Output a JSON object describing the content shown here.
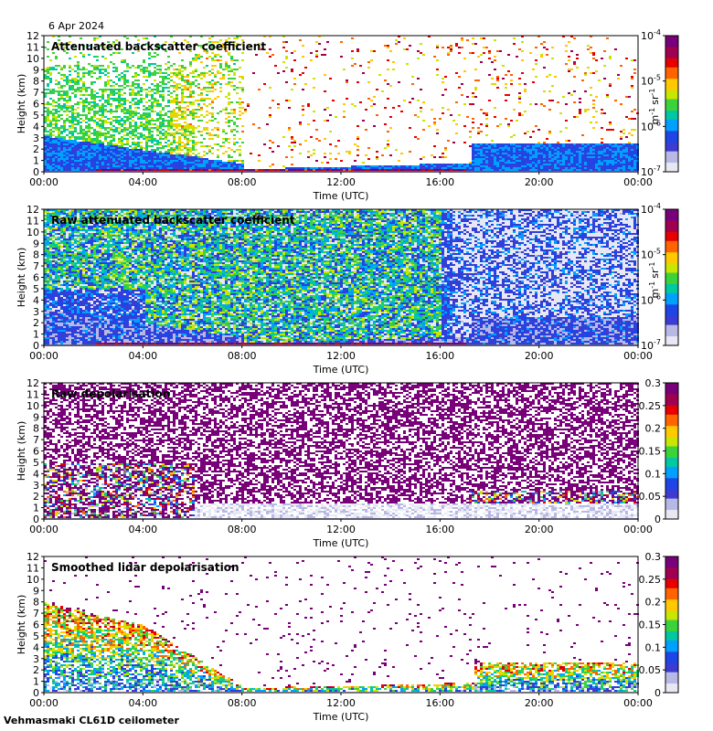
{
  "date": "6 Apr 2024",
  "footer": "Vehmasmaki CL61D ceilometer",
  "time_ticks": [
    "00:00",
    "04:00",
    "08:00",
    "12:00",
    "16:00",
    "20:00",
    "00:00"
  ],
  "xlabel": "Time (UTC)",
  "ylabel": "Height (km)",
  "chart_data": [
    {
      "type": "heatmap",
      "title": "Attenuated backscatter coefficient",
      "xlabel": "Time (UTC)",
      "ylabel": "Height (km)",
      "x_range_hours": [
        0,
        24
      ],
      "ylim": [
        0,
        12
      ],
      "y_ticks": [
        0,
        1,
        2,
        3,
        4,
        5,
        6,
        7,
        8,
        9,
        10,
        11,
        12
      ],
      "colorbar": {
        "scale": "log",
        "range": [
          1e-07,
          0.0001
        ],
        "tick_labels": [
          {
            "base": "10",
            "exp": "-4"
          },
          {
            "base": "10",
            "exp": "-5"
          },
          {
            "base": "10",
            "exp": "-6"
          },
          {
            "base": "10",
            "exp": "-7"
          }
        ],
        "unit": {
          "a": "m",
          "ae": "-1",
          "b": "sr",
          "be": "-1"
        }
      },
      "colormap": [
        "#e8e8f4",
        "#b8b8e6",
        "#3c3cd2",
        "#1e46e6",
        "#00a0ff",
        "#00c8a0",
        "#3cd23c",
        "#c8e600",
        "#ffc800",
        "#ff6400",
        "#e60000",
        "#a00050",
        "#780078"
      ],
      "profile": "attenuated"
    },
    {
      "type": "heatmap",
      "title": "Raw attenuated backscatter coefficient",
      "xlabel": "Time (UTC)",
      "ylabel": "Height (km)",
      "x_range_hours": [
        0,
        24
      ],
      "ylim": [
        0,
        12
      ],
      "y_ticks": [
        0,
        1,
        2,
        3,
        4,
        5,
        6,
        7,
        8,
        9,
        10,
        11,
        12
      ],
      "colorbar": {
        "scale": "log",
        "range": [
          1e-07,
          0.0001
        ],
        "tick_labels": [
          {
            "base": "10",
            "exp": "-4"
          },
          {
            "base": "10",
            "exp": "-5"
          },
          {
            "base": "10",
            "exp": "-6"
          },
          {
            "base": "10",
            "exp": "-7"
          }
        ],
        "unit": {
          "a": "m",
          "ae": "-1",
          "b": "sr",
          "be": "-1"
        }
      },
      "colormap": [
        "#e8e8f4",
        "#b8b8e6",
        "#3c3cd2",
        "#1e46e6",
        "#00a0ff",
        "#00c8a0",
        "#3cd23c",
        "#c8e600",
        "#ffc800",
        "#ff6400",
        "#e60000",
        "#a00050",
        "#780078"
      ],
      "profile": "raw"
    },
    {
      "type": "heatmap",
      "title": "Raw depolarisation",
      "xlabel": "Time (UTC)",
      "ylabel": "Height (km)",
      "x_range_hours": [
        0,
        24
      ],
      "ylim": [
        0,
        12
      ],
      "y_ticks": [
        0,
        1,
        2,
        3,
        4,
        5,
        6,
        7,
        8,
        9,
        10,
        11,
        12
      ],
      "colorbar": {
        "scale": "linear",
        "range": [
          0,
          0.3
        ],
        "tick_labels": [
          "0.3",
          "0.25",
          "0.2",
          "0.15",
          "0.1",
          "0.05",
          "0"
        ]
      },
      "colormap": [
        "#e8e8f4",
        "#b8b8e6",
        "#3c3cd2",
        "#1e46e6",
        "#00a0ff",
        "#00c8a0",
        "#3cd23c",
        "#c8e600",
        "#ffc800",
        "#ff6400",
        "#e60000",
        "#a00050",
        "#780078"
      ],
      "profile": "rawdepol"
    },
    {
      "type": "heatmap",
      "title": "Smoothed lidar depolarisation",
      "xlabel": "Time (UTC)",
      "ylabel": "Height (km)",
      "x_range_hours": [
        0,
        24
      ],
      "ylim": [
        0,
        12
      ],
      "y_ticks": [
        0,
        1,
        2,
        3,
        4,
        5,
        6,
        7,
        8,
        9,
        10,
        11,
        12
      ],
      "colorbar": {
        "scale": "linear",
        "range": [
          0,
          0.3
        ],
        "tick_labels": [
          "0.3",
          "0.25",
          "0.2",
          "0.15",
          "0.1",
          "0.05",
          "0"
        ]
      },
      "colormap": [
        "#e8e8f4",
        "#b8b8e6",
        "#3c3cd2",
        "#1e46e6",
        "#00a0ff",
        "#00c8a0",
        "#3cd23c",
        "#c8e600",
        "#ffc800",
        "#ff6400",
        "#e60000",
        "#a00050",
        "#780078"
      ],
      "profile": "smoothdepol"
    }
  ]
}
